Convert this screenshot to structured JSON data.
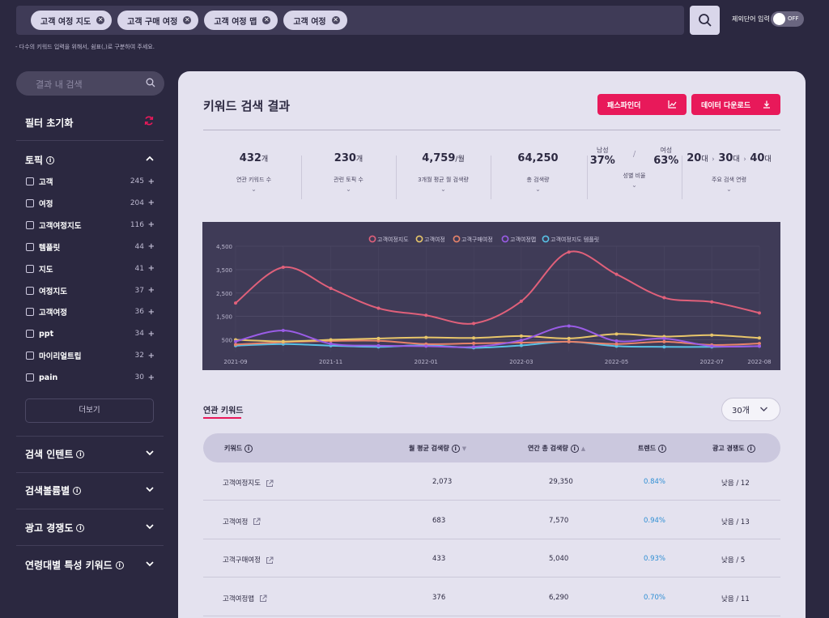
{
  "keywords": [
    "고객 여정 지도",
    "고객 구매 여정",
    "고객 여정 맵",
    "고객 여정"
  ],
  "exclude_label": "제외단어 입력",
  "toggle_label": "OFF",
  "hint": "- 다수의 키워드 입력을 위해서, 쉼표(,)로 구분하여 주세요.",
  "sidebar": {
    "search_placeholder": "결과 내 검색",
    "filter_reset": "필터 초기화",
    "topic_title": "토픽",
    "topics": [
      {
        "label": "고객",
        "count": "245"
      },
      {
        "label": "여정",
        "count": "204"
      },
      {
        "label": "고객여정지도",
        "count": "116"
      },
      {
        "label": "템플릿",
        "count": "44"
      },
      {
        "label": "지도",
        "count": "41"
      },
      {
        "label": "여정지도",
        "count": "37"
      },
      {
        "label": "고객여정",
        "count": "36"
      },
      {
        "label": "ppt",
        "count": "34"
      },
      {
        "label": "마이리얼트립",
        "count": "32"
      },
      {
        "label": "pain",
        "count": "30"
      }
    ],
    "more": "더보기",
    "sections": [
      "검색 인텐트",
      "검색볼륨별",
      "광고 경쟁도",
      "연령대별 특성 키워드"
    ]
  },
  "main": {
    "title": "키워드 검색 결과",
    "pathfinder": "패스파인더",
    "download": "데이터 다운로드",
    "stats": [
      {
        "value": "432",
        "unit": "개",
        "label": "연관 키워드 수"
      },
      {
        "value": "230",
        "unit": "개",
        "label": "관련 토픽 수"
      },
      {
        "value": "4,759",
        "unit": "/월",
        "label": "3개월 평균 월 검색량"
      },
      {
        "value": "64,250",
        "unit": "",
        "label": "총 검색량"
      }
    ],
    "gender": {
      "male_label": "남성",
      "male": "37%",
      "female_label": "여성",
      "female": "63%",
      "label": "성별 비율"
    },
    "age": {
      "a1": "20",
      "a2": "30",
      "a3": "40",
      "unit": "대",
      "label": "주요 검색 연령"
    }
  },
  "chart_data": {
    "type": "line",
    "x": [
      "2021-09",
      "2021-10",
      "2021-11",
      "2021-12",
      "2022-01",
      "2022-02",
      "2022-03",
      "2022-04",
      "2022-05",
      "2022-06",
      "2022-07",
      "2022-08"
    ],
    "x_tick_labels": [
      "2021-09",
      "2021-11",
      "2022-01",
      "2022-03",
      "2022-05",
      "2022-07",
      "2022-08"
    ],
    "y_tick_labels": [
      "500",
      "1,500",
      "2,500",
      "3,500",
      "4,500"
    ],
    "ylim": [
      0,
      4500
    ],
    "series": [
      {
        "name": "고객여정지도",
        "color": "#e0607a",
        "values": [
          2073,
          3600,
          2700,
          1850,
          1550,
          1200,
          2150,
          4250,
          3300,
          2300,
          2120,
          1650
        ]
      },
      {
        "name": "고객여정",
        "color": "#e8c66a",
        "values": [
          500,
          430,
          500,
          560,
          600,
          580,
          660,
          560,
          750,
          640,
          700,
          580
        ]
      },
      {
        "name": "고객구매여정",
        "color": "#e8836a",
        "values": [
          300,
          400,
          450,
          460,
          320,
          350,
          380,
          420,
          320,
          420,
          280,
          340
        ]
      },
      {
        "name": "고객여정맵",
        "color": "#9a5ce6",
        "values": [
          430,
          900,
          330,
          250,
          230,
          200,
          480,
          1090,
          450,
          560,
          230,
          230
        ]
      },
      {
        "name": "고객여정지도 템플릿",
        "color": "#58c2e6",
        "values": [
          250,
          320,
          250,
          200,
          270,
          160,
          260,
          420,
          230,
          200,
          200,
          230
        ]
      }
    ],
    "grid": true,
    "legend": "top"
  },
  "related": {
    "title": "연관 키워드",
    "count_select": "30개",
    "headers": [
      "키워드",
      "월 평균 검색량",
      "연간 총 검색량",
      "트렌드",
      "광고 경쟁도"
    ],
    "rows": [
      {
        "keyword": "고객여정지도",
        "monthly": "2,073",
        "yearly": "29,350",
        "trend": "0.84%",
        "ad": "낮음 / 12"
      },
      {
        "keyword": "고객여정",
        "monthly": "683",
        "yearly": "7,570",
        "trend": "0.94%",
        "ad": "낮음 / 13"
      },
      {
        "keyword": "고객구매여정",
        "monthly": "433",
        "yearly": "5,040",
        "trend": "0.93%",
        "ad": "낮음 / 5"
      },
      {
        "keyword": "고객여정맵",
        "monthly": "376",
        "yearly": "6,290",
        "trend": "0.70%",
        "ad": "낮음 / 11"
      }
    ]
  }
}
